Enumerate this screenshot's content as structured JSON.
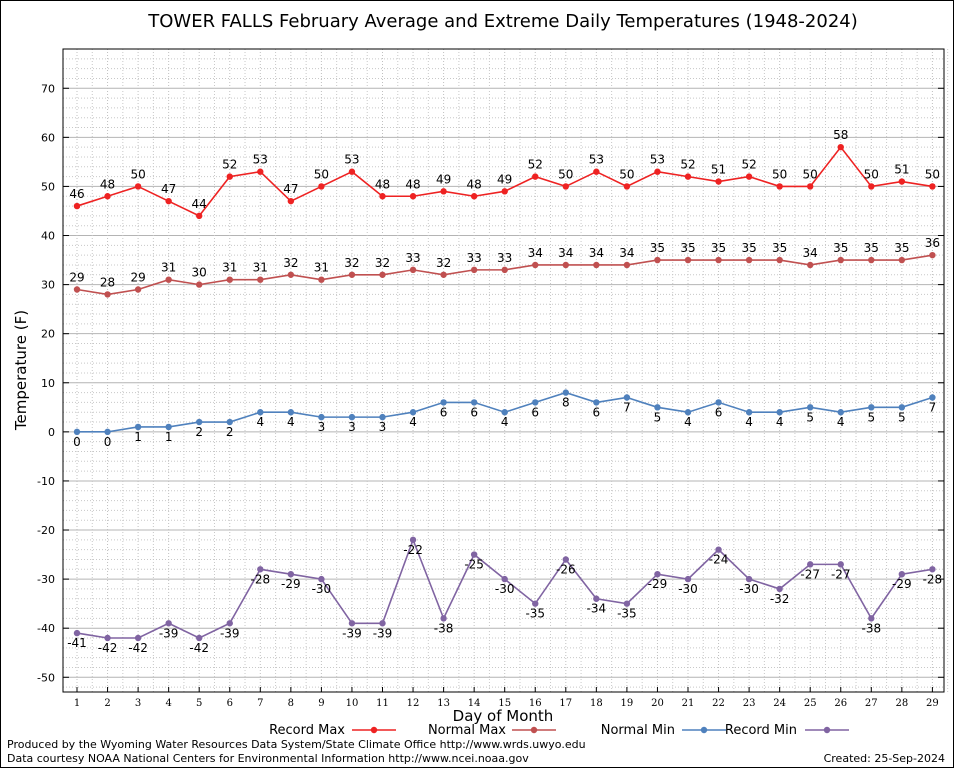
{
  "chart_data": {
    "type": "line",
    "title": "TOWER FALLS February Average and Extreme Daily Temperatures (1948-2024)",
    "xlabel": "Day of Month",
    "ylabel": "Temperature (F)",
    "ylim": [
      -53,
      78
    ],
    "yticks": [
      -50,
      -40,
      -30,
      -20,
      -10,
      0,
      10,
      20,
      30,
      40,
      50,
      60,
      70
    ],
    "x": [
      1,
      2,
      3,
      4,
      5,
      6,
      7,
      8,
      9,
      10,
      11,
      12,
      13,
      14,
      15,
      16,
      17,
      18,
      19,
      20,
      21,
      22,
      23,
      24,
      25,
      26,
      27,
      28,
      29
    ],
    "grid": true,
    "legend_position": "bottom",
    "series": [
      {
        "name": "Record Max",
        "color": "#ee2222",
        "values": [
          46,
          48,
          50,
          47,
          44,
          52,
          53,
          47,
          50,
          53,
          48,
          48,
          49,
          48,
          49,
          52,
          50,
          53,
          50,
          53,
          52,
          51,
          52,
          50,
          50,
          58,
          50,
          51,
          50
        ]
      },
      {
        "name": "Normal Max",
        "color": "#c05050",
        "values": [
          29,
          28,
          29,
          31,
          30,
          31,
          31,
          32,
          31,
          32,
          32,
          33,
          32,
          33,
          33,
          34,
          34,
          34,
          34,
          35,
          35,
          35,
          35,
          35,
          34,
          35,
          35,
          35,
          36
        ]
      },
      {
        "name": "Normal Min",
        "color": "#4f81bd",
        "values": [
          0,
          0,
          1,
          1,
          2,
          2,
          4,
          4,
          3,
          3,
          3,
          4,
          6,
          6,
          4,
          6,
          8,
          6,
          7,
          5,
          4,
          6,
          4,
          4,
          5,
          4,
          5,
          5,
          7
        ]
      },
      {
        "name": "Record Min",
        "color": "#8064a2",
        "values": [
          -41,
          -42,
          -42,
          -39,
          -42,
          -39,
          -28,
          -29,
          -30,
          -39,
          -39,
          -22,
          -38,
          -25,
          -30,
          -35,
          -26,
          -34,
          -35,
          -29,
          -30,
          -24,
          -30,
          -32,
          -27,
          -27,
          -38,
          -29,
          -28
        ]
      }
    ]
  },
  "footer": {
    "produced_by": "Produced by the Wyoming Water Resources Data System/State Climate Office http://www.wrds.uwyo.edu",
    "courtesy": "Data courtesy NOAA National Centers for Environmental Information http://www.ncei.noaa.gov",
    "created": "Created:  25-Sep-2024"
  }
}
